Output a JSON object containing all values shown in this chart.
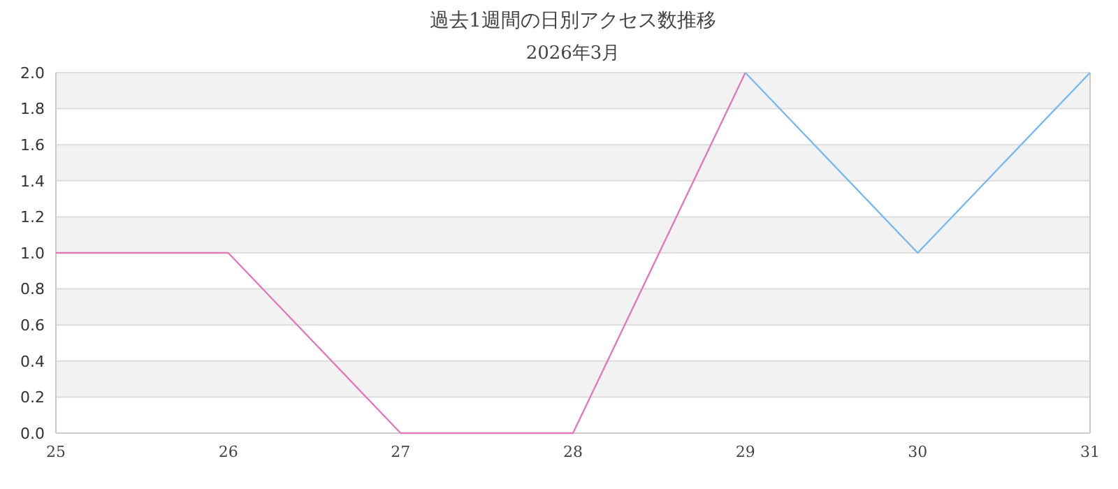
{
  "chart_data": {
    "type": "line",
    "title": "過去1週間の日別アクセス数推移",
    "subtitle": "2026年3月",
    "x": [
      25,
      26,
      27,
      28,
      29,
      30,
      31
    ],
    "series": [
      {
        "color": "#e07ab8",
        "values": [
          1,
          1,
          0,
          0,
          2,
          null,
          null
        ]
      },
      {
        "color": "#7ab8f0",
        "values": [
          null,
          null,
          null,
          null,
          2,
          1,
          2
        ]
      }
    ],
    "xlim": [
      25,
      31
    ],
    "xticks": [
      25,
      26,
      27,
      28,
      29,
      30,
      31
    ],
    "ylim": [
      0,
      2
    ],
    "yticks": [
      {
        "value": 0,
        "label": "0.0"
      },
      {
        "value": 0.2,
        "label": "0.2"
      },
      {
        "value": 0.4,
        "label": "0.4"
      },
      {
        "value": 0.6,
        "label": "0.6"
      },
      {
        "value": 0.8,
        "label": "0.8"
      },
      {
        "value": 1,
        "label": "1.0"
      },
      {
        "value": 1.2,
        "label": "1.2"
      },
      {
        "value": 1.4,
        "label": "1.4"
      },
      {
        "value": 1.6,
        "label": "1.6"
      },
      {
        "value": 1.8,
        "label": "1.8"
      },
      {
        "value": 2,
        "label": "2.0"
      }
    ],
    "grid": true,
    "marker": "none",
    "line_style": "solid"
  }
}
